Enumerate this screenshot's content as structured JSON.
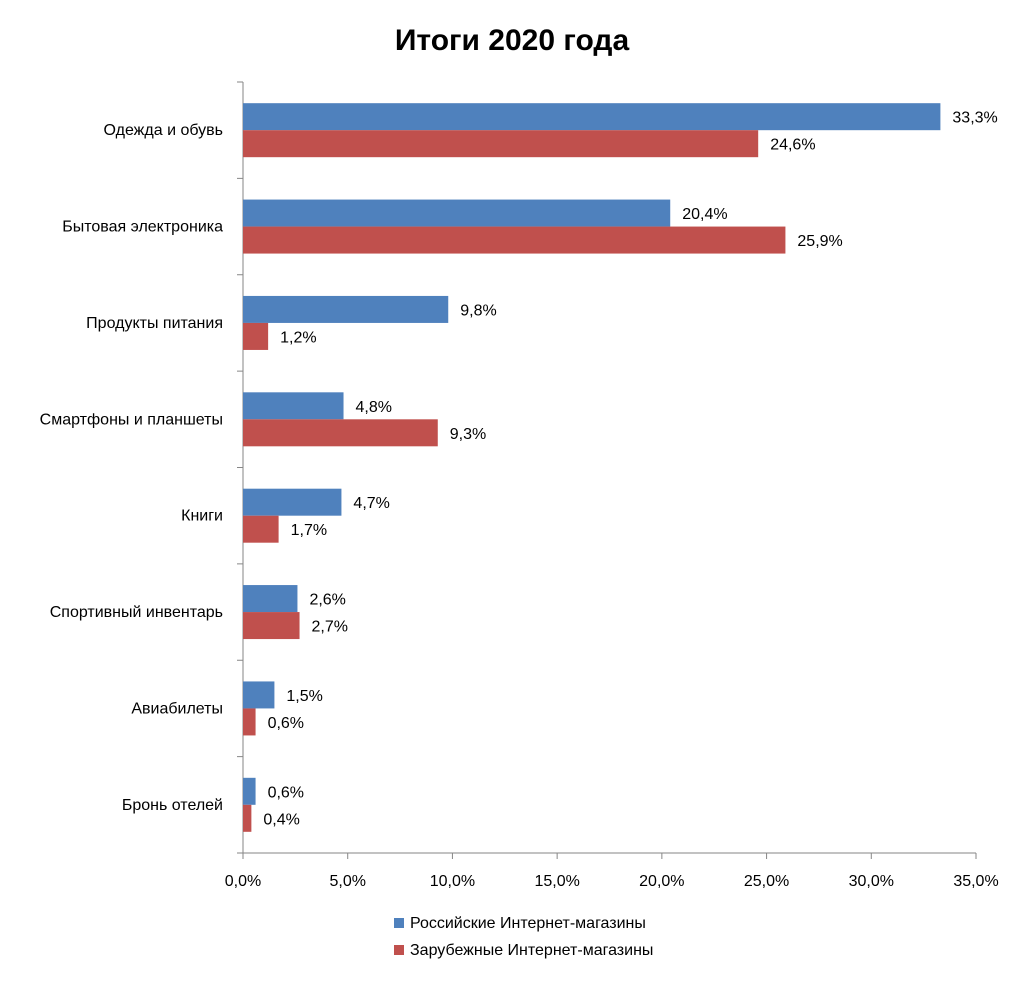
{
  "chart_data": {
    "type": "bar",
    "orientation": "horizontal",
    "title": "Итоги 2020 года",
    "xlabel": "",
    "ylabel": "",
    "xlim": [
      0,
      35
    ],
    "x_ticks": [
      "0,0%",
      "5,0%",
      "10,0%",
      "15,0%",
      "20,0%",
      "25,0%",
      "30,0%",
      "35,0%"
    ],
    "categories": [
      "Одежда и обувь",
      "Бытовая электроника",
      "Продукты питания",
      "Смартфоны и планшеты",
      "Книги",
      "Спортивный инвентарь",
      "Авиабилеты",
      "Бронь отелей"
    ],
    "series": [
      {
        "name": "Российские Интернет-магазины",
        "color": "#4f81bd",
        "values": [
          33.3,
          20.4,
          9.8,
          4.8,
          4.7,
          2.6,
          1.5,
          0.6
        ],
        "labels": [
          "33,3%",
          "20,4%",
          "9,8%",
          "4,8%",
          "4,7%",
          "2,6%",
          "1,5%",
          "0,6%"
        ]
      },
      {
        "name": "Зарубежные Интернет-магазины",
        "color": "#c0504d",
        "values": [
          24.6,
          25.9,
          1.2,
          9.3,
          1.7,
          2.7,
          0.6,
          0.4
        ],
        "labels": [
          "24,6%",
          "25,9%",
          "1,2%",
          "9,3%",
          "1,7%",
          "2,7%",
          "0,6%",
          "0,4%"
        ]
      }
    ],
    "grid": false,
    "legend_position": "bottom"
  }
}
